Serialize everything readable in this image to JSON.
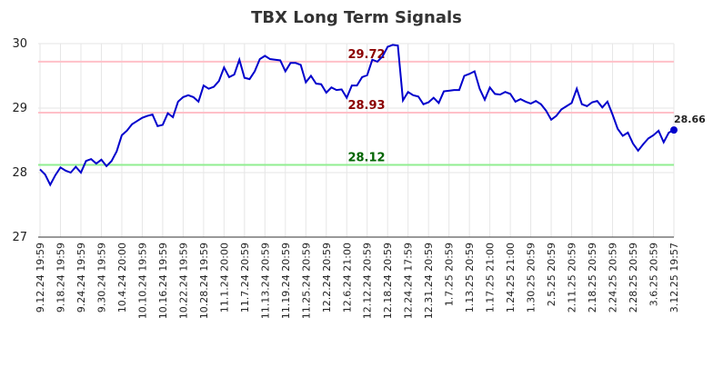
{
  "chart_data": {
    "type": "line",
    "title": "TBX Long Term Signals",
    "categories": [
      "9.12.24 19:59",
      null,
      null,
      null,
      "9.18.24 19:59",
      null,
      null,
      null,
      "9.24.24 19:59",
      null,
      null,
      null,
      "9.30.24 19:59",
      null,
      null,
      null,
      "10.4.24 20:00",
      null,
      null,
      null,
      "10.10.24 19:59",
      null,
      null,
      null,
      "10.16.24 19:59",
      null,
      null,
      null,
      "10.22.24 19:59",
      null,
      null,
      null,
      "10.28.24 19:59",
      null,
      null,
      null,
      "11.1.24 20:00",
      null,
      null,
      null,
      "11.7.24 20:59",
      null,
      null,
      null,
      "11.13.24 20:59",
      null,
      null,
      null,
      "11.19.24 20:59",
      null,
      null,
      null,
      "11.25.24 20:59",
      null,
      null,
      null,
      "12.2.24 20:59",
      null,
      null,
      null,
      "12.6.24 21:00",
      null,
      null,
      null,
      "12.12.24 20:59",
      null,
      null,
      null,
      "12.18.24 20:59",
      null,
      null,
      null,
      "12.24.24 17:59",
      null,
      null,
      null,
      "12.31.24 20:59",
      null,
      null,
      null,
      "1.7.25 20:59",
      null,
      null,
      null,
      "1.13.25 20:59",
      null,
      null,
      null,
      "1.17.25 21:00",
      null,
      null,
      null,
      "1.24.25 21:00",
      null,
      null,
      null,
      "1.30.25 20:59",
      null,
      null,
      null,
      "2.5.25 20:59",
      null,
      null,
      null,
      "2.11.25 20:59",
      null,
      null,
      null,
      "2.18.25 20:59",
      null,
      null,
      null,
      "2.24.25 20:59",
      null,
      null,
      null,
      "2.28.25 20:59",
      null,
      null,
      null,
      "3.6.25 20:59",
      null,
      null,
      null,
      "3.12.25 19:57"
    ],
    "series": [
      {
        "color": "#0000cc",
        "values": [
          28.05,
          27.97,
          27.81,
          27.96,
          28.08,
          28.03,
          28.0,
          28.09,
          28.0,
          28.18,
          28.21,
          28.14,
          28.2,
          28.1,
          28.18,
          28.33,
          28.58,
          28.65,
          28.75,
          28.8,
          28.85,
          28.88,
          28.9,
          28.72,
          28.74,
          28.92,
          28.86,
          29.1,
          29.17,
          29.2,
          29.17,
          29.1,
          29.35,
          29.3,
          29.33,
          29.42,
          29.63,
          29.48,
          29.52,
          29.75,
          29.47,
          29.45,
          29.57,
          29.76,
          29.81,
          29.76,
          29.75,
          29.74,
          29.57,
          29.7,
          29.7,
          29.67,
          29.4,
          29.5,
          29.38,
          29.37,
          29.24,
          29.32,
          29.28,
          29.29,
          29.16,
          29.35,
          29.35,
          29.48,
          29.51,
          29.75,
          29.72,
          29.8,
          29.95,
          29.98,
          29.97,
          29.12,
          29.25,
          29.2,
          29.18,
          29.06,
          29.09,
          29.16,
          29.08,
          29.26,
          29.27,
          29.28,
          29.28,
          29.5,
          29.53,
          29.57,
          29.3,
          29.13,
          29.32,
          29.22,
          29.21,
          29.25,
          29.22,
          29.1,
          29.14,
          29.1,
          29.07,
          29.11,
          29.06,
          28.96,
          28.82,
          28.88,
          28.98,
          29.03,
          29.08,
          29.3,
          29.06,
          29.03,
          29.09,
          29.11,
          29.01,
          29.1,
          28.9,
          28.68,
          28.57,
          28.62,
          28.45,
          28.34,
          28.44,
          28.53,
          28.58,
          28.65,
          28.47,
          28.62,
          28.66
        ]
      }
    ],
    "reference_lines": [
      {
        "value": 29.72,
        "color": "#ffc0c8",
        "label_color": "#8b0000"
      },
      {
        "value": 28.93,
        "color": "#ffc0c8",
        "label_color": "#8b0000"
      },
      {
        "value": 28.12,
        "color": "#90ee90",
        "label_color": "#006400"
      }
    ],
    "ylim": [
      27,
      30
    ],
    "yticks": [
      27,
      28,
      29,
      30
    ],
    "grid": true
  }
}
